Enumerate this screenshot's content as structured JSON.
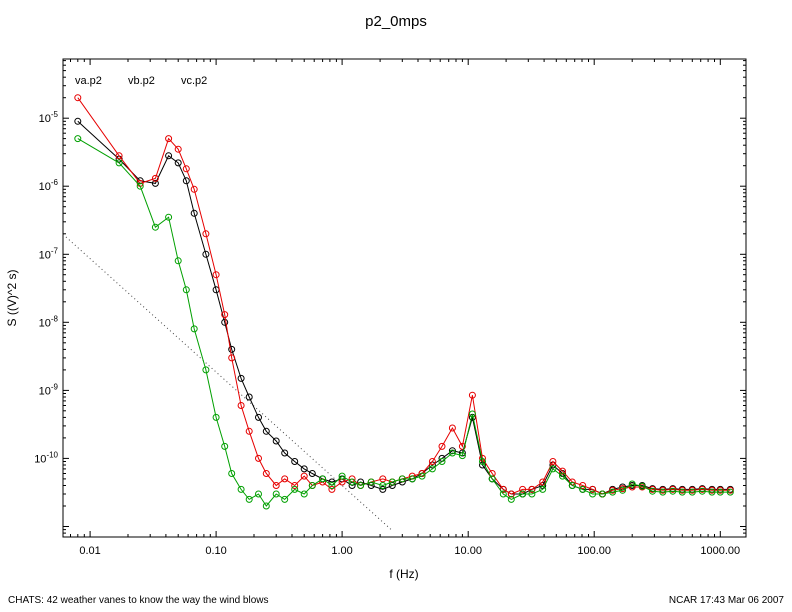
{
  "footer": {
    "left": "CHATS: 42 weather vanes to know the way the wind blows",
    "right": "NCAR 17:43 Mar 06 2007"
  },
  "chart_data": {
    "type": "line",
    "title": "p2_0mps",
    "xlabel": "f (Hz)",
    "ylabel": "S ((V)^2 s)",
    "xscale": "log",
    "yscale": "log",
    "grid": false,
    "legend_position": "inside-top-left",
    "xlim": [
      0.0061,
      1600
    ],
    "ylim": [
      7e-12,
      7.4e-05
    ],
    "x_ticks": [
      0.01,
      0.1,
      1,
      10,
      100,
      1000
    ],
    "x_tick_labels": [
      "0.01",
      "0.10",
      "1.00",
      "10.00",
      "100.00",
      "1000.00"
    ],
    "y_ticks": [
      1e-05,
      1e-06,
      1e-07,
      1e-08,
      1e-09,
      1e-10
    ],
    "y_tick_labels": [
      "10^-5",
      "10^-6",
      "10^-7",
      "10^-8",
      "10^-9",
      "10^-10"
    ],
    "marker": "open-circle",
    "legend": [
      {
        "label": "va.p2",
        "color": "#000000"
      },
      {
        "label": "vb.p2",
        "color": "#e60000"
      },
      {
        "label": "vc.p2",
        "color": "#00a000"
      }
    ],
    "reference_line": {
      "style": "dotted",
      "slope": -1.6667,
      "anchor_x": 1,
      "anchor_y": 4e-11,
      "x_start": 0.0061,
      "x_end": 2.5,
      "color": "#444444"
    },
    "x": [
      0.008,
      0.017,
      0.025,
      0.033,
      0.042,
      0.05,
      0.058,
      0.067,
      0.083,
      0.1,
      0.117,
      0.133,
      0.158,
      0.183,
      0.217,
      0.25,
      0.3,
      0.35,
      0.42,
      0.5,
      0.58,
      0.7,
      0.83,
      1.0,
      1.2,
      1.4,
      1.7,
      2.1,
      2.5,
      3.0,
      3.6,
      4.3,
      5.2,
      6.2,
      7.5,
      9.0,
      10.8,
      13,
      15.5,
      19,
      22,
      27,
      32,
      39,
      47,
      56,
      67,
      81,
      97,
      116,
      140,
      168,
      200,
      240,
      290,
      350,
      420,
      500,
      600,
      720,
      860,
      1000,
      1200
    ],
    "series": [
      {
        "name": "va.p2",
        "color": "#000000",
        "values": [
          9e-06,
          2.5e-06,
          1.2e-06,
          1.1e-06,
          2.8e-06,
          2.2e-06,
          1.2e-06,
          4e-07,
          1e-07,
          3e-08,
          1e-08,
          4e-09,
          1.5e-09,
          8e-10,
          4e-10,
          2.5e-10,
          1.8e-10,
          1.2e-10,
          9e-11,
          7e-11,
          6e-11,
          5e-11,
          4.5e-11,
          5e-11,
          4e-11,
          4.5e-11,
          4e-11,
          3.5e-11,
          4e-11,
          4.5e-11,
          5e-11,
          6e-11,
          8e-11,
          1e-10,
          1.3e-10,
          1.2e-10,
          4e-10,
          8e-11,
          5e-11,
          3.5e-11,
          3e-11,
          3e-11,
          3.5e-11,
          4e-11,
          8e-11,
          6e-11,
          4e-11,
          3.5e-11,
          3.5e-11,
          3e-11,
          3.5e-11,
          3.8e-11,
          4e-11,
          4e-11,
          3.6e-11,
          3.5e-11,
          3.6e-11,
          3.5e-11,
          3.5e-11,
          3.6e-11,
          3.5e-11,
          3.5e-11,
          3.5e-11
        ]
      },
      {
        "name": "vb.p2",
        "color": "#e60000",
        "values": [
          2e-05,
          2.8e-06,
          1.1e-06,
          1.3e-06,
          5e-06,
          3.5e-06,
          1.8e-06,
          9e-07,
          2e-07,
          5e-08,
          1.3e-08,
          3e-09,
          6e-10,
          2.5e-10,
          1e-10,
          6e-11,
          4e-11,
          5e-11,
          4e-11,
          5.5e-11,
          4e-11,
          4.5e-11,
          3.5e-11,
          4.5e-11,
          5e-11,
          4e-11,
          4.5e-11,
          5e-11,
          4.5e-11,
          5e-11,
          5.5e-11,
          6e-11,
          9e-11,
          1.5e-10,
          2.8e-10,
          1.5e-10,
          8.5e-10,
          1e-10,
          6e-11,
          3.5e-11,
          3e-11,
          3.5e-11,
          3.5e-11,
          4.5e-11,
          9e-11,
          6.5e-11,
          4.5e-11,
          4e-11,
          3.5e-11,
          3e-11,
          3.4e-11,
          3.6e-11,
          3.8e-11,
          3.8e-11,
          3.5e-11,
          3.4e-11,
          3.5e-11,
          3.4e-11,
          3.4e-11,
          3.5e-11,
          3.4e-11,
          3.4e-11,
          3.4e-11
        ]
      },
      {
        "name": "vc.p2",
        "color": "#00a000",
        "values": [
          5e-06,
          2.2e-06,
          1e-06,
          2.5e-07,
          3.5e-07,
          8e-08,
          3e-08,
          8e-09,
          2e-09,
          4e-10,
          1.5e-10,
          6e-11,
          3.5e-11,
          2.5e-11,
          3e-11,
          2e-11,
          3e-11,
          2.5e-11,
          3.5e-11,
          3e-11,
          4e-11,
          5e-11,
          4e-11,
          5.5e-11,
          4.5e-11,
          4e-11,
          4.5e-11,
          4e-11,
          4.5e-11,
          5e-11,
          5e-11,
          5.5e-11,
          7e-11,
          9e-11,
          1.2e-10,
          1.1e-10,
          4.5e-10,
          9e-11,
          5e-11,
          3e-11,
          2.5e-11,
          3e-11,
          3e-11,
          3.5e-11,
          7e-11,
          5.5e-11,
          4e-11,
          3.5e-11,
          3e-11,
          3e-11,
          3.2e-11,
          3.4e-11,
          4.2e-11,
          3.9e-11,
          3.3e-11,
          3.2e-11,
          3.3e-11,
          3.2e-11,
          3.2e-11,
          3.3e-11,
          3.2e-11,
          3.2e-11,
          3.2e-11
        ]
      }
    ]
  }
}
